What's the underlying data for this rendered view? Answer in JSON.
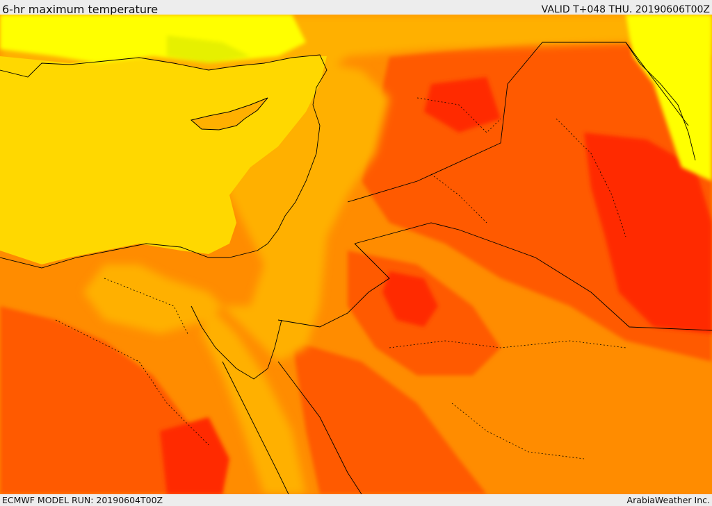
{
  "header": {
    "title": "6-hr maximum temperature",
    "valid": "VALID T+048 THU. 20190606T00Z"
  },
  "footer": {
    "model_run": "ECMWF MODEL RUN: 20190604T00Z",
    "credit": "ArabiaWeather Inc."
  },
  "palette": {
    "sea": "#ffd800",
    "yellow_cool": "#ffff00",
    "yellow_green": "#e6f000",
    "light_orange": "#ffb000",
    "orange": "#ff8c00",
    "dark_orange": "#ff5a00",
    "red_orange": "#ff2a00",
    "border": "#000000"
  },
  "map": {
    "variable": "6-hr maximum temperature",
    "icons": [
      "coastline",
      "country-borders",
      "temperature-shading"
    ]
  }
}
